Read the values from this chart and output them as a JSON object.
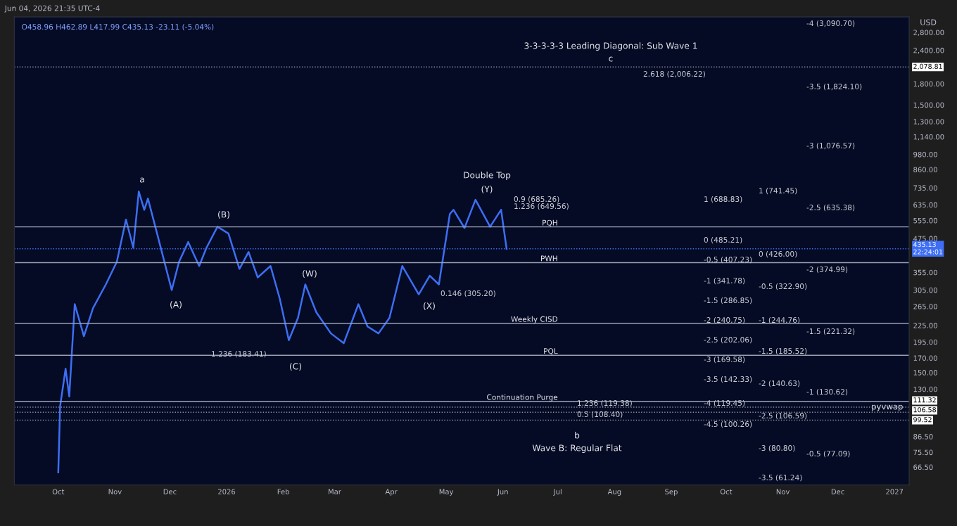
{
  "chart_data": {
    "type": "line",
    "ylabel": "USD",
    "series": [
      {
        "color": "#3d6ef5",
        "x": [
          "2025-10-01",
          "2025-10-02",
          "2025-10-05",
          "2025-10-07",
          "2025-10-10",
          "2025-10-15",
          "2025-10-20",
          "2025-10-27",
          "2025-11-02",
          "2025-11-07",
          "2025-11-11",
          "2025-11-14",
          "2025-11-17",
          "2025-11-19",
          "2025-11-24",
          "2025-12-02",
          "2025-12-06",
          "2025-12-11",
          "2025-12-17",
          "2025-12-21",
          "2025-12-27",
          "2026-01-02",
          "2026-01-08",
          "2026-01-13",
          "2026-01-18",
          "2026-01-25",
          "2026-01-30",
          "2026-02-04",
          "2026-02-09",
          "2026-02-13",
          "2026-02-19",
          "2026-02-27",
          "2026-03-06",
          "2026-03-14",
          "2026-03-19",
          "2026-03-25",
          "2026-03-31",
          "2026-04-07",
          "2026-04-16",
          "2026-04-22",
          "2026-04-27",
          "2026-05-03",
          "2026-05-05",
          "2026-05-11",
          "2026-05-17",
          "2026-05-25",
          "2026-05-31",
          "2026-06-03"
        ],
        "values": [
          63.5,
          112,
          155,
          122,
          270,
          205,
          261,
          320,
          389,
          559,
          439,
          712,
          608,
          670,
          496,
          305,
          389,
          461,
          375,
          439,
          526,
          496,
          366,
          423,
          340,
          375,
          284,
          198,
          240,
          320,
          252,
          210,
          193,
          270,
          223,
          210,
          240,
          375,
          294,
          345,
          320,
          587,
          608,
          520,
          663,
          526,
          608,
          435
        ]
      }
    ],
    "xlim": [
      "2025-09-07",
      "2027-01-09"
    ],
    "xticks": [
      {
        "value": "2025-10-01",
        "label": "Oct"
      },
      {
        "value": "2025-11-01",
        "label": "Nov"
      },
      {
        "value": "2025-12-01",
        "label": "Dec"
      },
      {
        "value": "2026-01-01",
        "label": "2026"
      },
      {
        "value": "2026-02-01",
        "label": "Feb"
      },
      {
        "value": "2026-03-01",
        "label": "Mar"
      },
      {
        "value": "2026-04-01",
        "label": "Apr"
      },
      {
        "value": "2026-05-01",
        "label": "May"
      },
      {
        "value": "2026-06-01",
        "label": "Jun"
      },
      {
        "value": "2026-07-01",
        "label": "Jul"
      },
      {
        "value": "2026-08-01",
        "label": "Aug"
      },
      {
        "value": "2026-09-01",
        "label": "Sep"
      },
      {
        "value": "2026-10-01",
        "label": "Oct"
      },
      {
        "value": "2026-11-01",
        "label": "Nov"
      },
      {
        "value": "2026-12-01",
        "label": "Dec"
      },
      {
        "value": "2027-01-01",
        "label": "2027"
      }
    ],
    "log": "y",
    "ylim": [
      57,
      3200
    ],
    "yticks": [
      {
        "value": 2800,
        "label": "2,800.00"
      },
      {
        "value": 2400,
        "label": "2,400.00"
      },
      {
        "value": 1800,
        "label": "1,800.00"
      },
      {
        "value": 1500,
        "label": "1,500.00"
      },
      {
        "value": 1300,
        "label": "1,300.00"
      },
      {
        "value": 1140,
        "label": "1,140.00"
      },
      {
        "value": 980,
        "label": "980.00"
      },
      {
        "value": 860,
        "label": "860.00"
      },
      {
        "value": 735,
        "label": "735.00"
      },
      {
        "value": 635,
        "label": "635.00"
      },
      {
        "value": 555,
        "label": "555.00"
      },
      {
        "value": 475,
        "label": "475.00"
      },
      {
        "value": 355,
        "label": "355.00"
      },
      {
        "value": 305,
        "label": "305.00"
      },
      {
        "value": 265,
        "label": "265.00"
      },
      {
        "value": 225,
        "label": "225.00"
      },
      {
        "value": 195,
        "label": "195.00"
      },
      {
        "value": 170,
        "label": "170.00"
      },
      {
        "value": 150,
        "label": "150.00"
      },
      {
        "value": 130,
        "label": "130.00"
      },
      {
        "value": 86.5,
        "label": "86.50"
      },
      {
        "value": 75.5,
        "label": "75.50"
      },
      {
        "value": 66.5,
        "label": "66.50"
      }
    ],
    "ref_lines": [
      {
        "axis": "y",
        "value": 525,
        "label": "PQH",
        "line_style": "solid",
        "color": "#9aa0b4"
      },
      {
        "axis": "y",
        "value": 386,
        "label": "PWH",
        "line_style": "solid",
        "color": "#9aa0b4"
      },
      {
        "axis": "y",
        "value": 229,
        "label": "Weekly CISD",
        "line_style": "solid",
        "color": "#9aa0b4"
      },
      {
        "axis": "y",
        "value": 174,
        "label": "PQL",
        "line_style": "solid",
        "color": "#9aa0b4"
      },
      {
        "axis": "y",
        "value": 117,
        "label": "Continuation Purge",
        "line_style": "solid",
        "color": "#9aa0b4"
      },
      {
        "axis": "y",
        "value": 2078.81,
        "label": "2,078.81",
        "line_style": "dotted",
        "color": "#8a8f9e"
      },
      {
        "axis": "y",
        "value": 435.13,
        "label": "435.13\n22:24:01",
        "line_style": "dotted",
        "color": "#3d6ef5"
      },
      {
        "axis": "y",
        "value": 111.32,
        "label": "111.32",
        "line_style": "dotted",
        "color": "#8a8f9e"
      },
      {
        "axis": "y",
        "value": 106.58,
        "label": "106.58",
        "line_style": "dotted",
        "color": "#8a8f9e"
      },
      {
        "axis": "y",
        "value": 99.52,
        "label": "99.52",
        "line_style": "dotted",
        "color": "#8a8f9e"
      }
    ],
    "annotations": [
      "Jun 04, 2026 21:35 UTC-4",
      "O458.96 H462.89 L417.99 C435.13 -23.11 (-5.04%)",
      {
        "text": "pyvwap",
        "x": "2026-12-28",
        "y": 111.32
      },
      "a",
      "(B)",
      "(A)",
      "(W)",
      "(C)",
      "(X)",
      "Double Top",
      "(Y)",
      "3-3-3-3-3 Leading Diagonal: Sub Wave 1",
      "c",
      "b",
      "Wave B: Regular Flat",
      "2.618 (2,006.22)",
      "0.9 (685.26)",
      "1.236 (649.56)",
      "0.146 (305.20)",
      "1.236 (183.41)",
      "1.236 (119.38)",
      "0.5 (108.40)",
      "1 (688.83)",
      "0 (485.21)",
      "-0.5 (407.23)",
      "-1 (341.78)",
      "-1.5 (286.85)",
      "-2 (240.75)",
      "-2.5 (202.06)",
      "-3 (169.58)",
      "-3.5 (142.33)",
      "-4 (119.45)",
      "-4.5 (100.26)",
      "1 (741.45)",
      "0 (426.00)",
      "-0.5 (322.90)",
      "-1 (244.76)",
      "-1.5 (185.52)",
      "-2 (140.63)",
      "-2.5 (106.59)",
      "-3 (80.80)",
      "-3.5 (61.24)",
      "-4 (3,090.70)",
      "-3.5 (1,824.10)",
      "-3 (1,076.57)",
      "-2.5 (635.38)",
      "-2 (374.99)",
      "-1.5 (221.32)",
      "-1 (130.62)",
      "-0.5 (77.09)"
    ]
  }
}
